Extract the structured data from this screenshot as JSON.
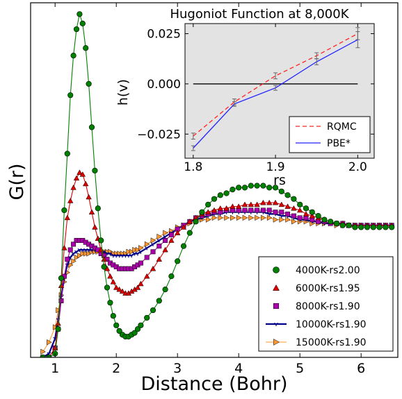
{
  "chart_data": [
    {
      "type": "scatter",
      "xlabel": "Distance (Bohr)",
      "ylabel": "G(r)",
      "xlim": [
        0.6,
        6.6
      ],
      "ylim": [
        0.0,
        1.88
      ],
      "xticks": [
        1,
        2,
        3,
        4,
        5,
        6
      ],
      "x_tick_labels": [
        "1",
        "2",
        "3",
        "4",
        "5",
        "6"
      ],
      "legend_position": "lower-right",
      "series": [
        {
          "name": "4000K-rs2.00",
          "color": "#008000",
          "marker": "circle",
          "x": [
            0.8,
            0.9,
            1.0,
            1.05,
            1.1,
            1.15,
            1.2,
            1.25,
            1.3,
            1.35,
            1.4,
            1.45,
            1.5,
            1.55,
            1.6,
            1.65,
            1.7,
            1.75,
            1.8,
            1.85,
            1.9,
            1.95,
            2.0,
            2.05,
            2.1,
            2.15,
            2.2,
            2.25,
            2.3,
            2.35,
            2.4,
            2.5,
            2.6,
            2.7,
            2.8,
            2.9,
            3.0,
            3.1,
            3.2,
            3.3,
            3.4,
            3.5,
            3.6,
            3.7,
            3.8,
            3.9,
            4.0,
            4.1,
            4.2,
            4.3,
            4.4,
            4.5,
            4.6,
            4.7,
            4.8,
            4.9,
            5.0,
            5.1,
            5.2,
            5.3,
            5.4,
            5.5,
            5.6,
            5.7,
            5.8,
            5.9,
            6.0,
            6.1,
            6.2,
            6.3,
            6.4,
            6.5
          ],
          "y": [
            0.0,
            0.0,
            0.02,
            0.15,
            0.42,
            0.78,
            1.08,
            1.39,
            1.6,
            1.74,
            1.82,
            1.77,
            1.64,
            1.45,
            1.22,
            0.99,
            0.79,
            0.62,
            0.48,
            0.37,
            0.29,
            0.22,
            0.17,
            0.14,
            0.12,
            0.11,
            0.11,
            0.12,
            0.13,
            0.15,
            0.17,
            0.21,
            0.25,
            0.3,
            0.36,
            0.43,
            0.51,
            0.59,
            0.66,
            0.72,
            0.77,
            0.81,
            0.84,
            0.86,
            0.87,
            0.89,
            0.9,
            0.9,
            0.91,
            0.91,
            0.91,
            0.9,
            0.9,
            0.88,
            0.86,
            0.84,
            0.81,
            0.79,
            0.77,
            0.75,
            0.73,
            0.72,
            0.71,
            0.7,
            0.7,
            0.69,
            0.69,
            0.69,
            0.69,
            0.69,
            0.69,
            0.69
          ]
        },
        {
          "name": "6000K-rs1.95",
          "color": "#dd0000",
          "marker": "triangle-up",
          "x": [
            0.8,
            0.9,
            1.0,
            1.05,
            1.1,
            1.15,
            1.2,
            1.25,
            1.3,
            1.35,
            1.4,
            1.45,
            1.5,
            1.55,
            1.6,
            1.65,
            1.7,
            1.75,
            1.8,
            1.85,
            1.9,
            1.95,
            2.0,
            2.05,
            2.1,
            2.15,
            2.2,
            2.25,
            2.3,
            2.35,
            2.4,
            2.5,
            2.6,
            2.7,
            2.8,
            2.9,
            3.0,
            3.1,
            3.2,
            3.3,
            3.4,
            3.5,
            3.6,
            3.7,
            3.8,
            3.9,
            4.0,
            4.1,
            4.2,
            4.3,
            4.4,
            4.5,
            4.6,
            4.7,
            4.8,
            4.9,
            5.0,
            5.1,
            5.2,
            5.3,
            5.4,
            5.5,
            5.6,
            5.7,
            5.8,
            5.9,
            6.0,
            6.1,
            6.2,
            6.3,
            6.4,
            6.5
          ],
          "y": [
            0.0,
            0.0,
            0.05,
            0.18,
            0.38,
            0.58,
            0.74,
            0.83,
            0.9,
            0.95,
            0.98,
            0.97,
            0.92,
            0.85,
            0.77,
            0.69,
            0.63,
            0.57,
            0.52,
            0.47,
            0.43,
            0.4,
            0.37,
            0.36,
            0.35,
            0.34,
            0.34,
            0.35,
            0.36,
            0.37,
            0.39,
            0.43,
            0.47,
            0.52,
            0.57,
            0.62,
            0.66,
            0.69,
            0.72,
            0.74,
            0.76,
            0.77,
            0.78,
            0.79,
            0.79,
            0.8,
            0.8,
            0.81,
            0.81,
            0.81,
            0.82,
            0.82,
            0.82,
            0.81,
            0.8,
            0.79,
            0.78,
            0.76,
            0.75,
            0.74,
            0.73,
            0.72,
            0.71,
            0.71,
            0.7,
            0.7,
            0.7,
            0.7,
            0.7,
            0.7,
            0.7,
            0.7
          ]
        },
        {
          "name": "8000K-rs1.90",
          "color": "#aa00aa",
          "marker": "square",
          "x": [
            0.8,
            0.9,
            1.0,
            1.05,
            1.1,
            1.15,
            1.2,
            1.25,
            1.3,
            1.35,
            1.4,
            1.45,
            1.5,
            1.55,
            1.6,
            1.65,
            1.7,
            1.75,
            1.8,
            1.85,
            1.9,
            1.95,
            2.0,
            2.05,
            2.1,
            2.15,
            2.2,
            2.25,
            2.3,
            2.35,
            2.4,
            2.5,
            2.6,
            2.7,
            2.8,
            2.9,
            3.0,
            3.1,
            3.2,
            3.3,
            3.4,
            3.5,
            3.6,
            3.7,
            3.8,
            3.9,
            4.0,
            4.1,
            4.2,
            4.3,
            4.4,
            4.5,
            4.6,
            4.7,
            4.8,
            4.9,
            5.0,
            5.1,
            5.2,
            5.3,
            5.4,
            5.5,
            5.6,
            5.7,
            5.8,
            5.9,
            6.0,
            6.1,
            6.2,
            6.3,
            6.4,
            6.5
          ],
          "y": [
            0.0,
            0.0,
            0.05,
            0.15,
            0.3,
            0.43,
            0.52,
            0.57,
            0.6,
            0.62,
            0.62,
            0.62,
            0.61,
            0.6,
            0.59,
            0.58,
            0.57,
            0.55,
            0.54,
            0.52,
            0.5,
            0.49,
            0.48,
            0.47,
            0.47,
            0.47,
            0.47,
            0.47,
            0.48,
            0.49,
            0.5,
            0.53,
            0.56,
            0.59,
            0.62,
            0.65,
            0.68,
            0.7,
            0.72,
            0.74,
            0.75,
            0.76,
            0.77,
            0.77,
            0.78,
            0.78,
            0.78,
            0.78,
            0.78,
            0.78,
            0.78,
            0.78,
            0.77,
            0.77,
            0.76,
            0.75,
            0.74,
            0.74,
            0.73,
            0.72,
            0.72,
            0.71,
            0.71,
            0.71,
            0.7,
            0.7,
            0.7,
            0.7,
            0.7,
            0.7,
            0.7,
            0.7
          ]
        },
        {
          "name": "10000K-rs1.90",
          "color": "#000088",
          "marker": "tri-down",
          "x": [
            0.8,
            0.9,
            1.0,
            1.05,
            1.1,
            1.15,
            1.2,
            1.25,
            1.3,
            1.35,
            1.4,
            1.45,
            1.5,
            1.55,
            1.6,
            1.65,
            1.7,
            1.75,
            1.8,
            1.85,
            1.9,
            1.95,
            2.0,
            2.05,
            2.1,
            2.15,
            2.2,
            2.25,
            2.3,
            2.35,
            2.4,
            2.5,
            2.6,
            2.7,
            2.8,
            2.9,
            3.0,
            3.1,
            3.2,
            3.3,
            3.4,
            3.5,
            3.6,
            3.7,
            3.8,
            3.9,
            4.0,
            4.1,
            4.2,
            4.3,
            4.4,
            4.5,
            4.6,
            4.7,
            4.8,
            4.9,
            5.0,
            5.1,
            5.2,
            5.3,
            5.4,
            5.5,
            5.6,
            5.7,
            5.8,
            5.9,
            6.0,
            6.1,
            6.2,
            6.3,
            6.4,
            6.5
          ],
          "y": [
            0.0,
            0.02,
            0.1,
            0.2,
            0.32,
            0.42,
            0.49,
            0.53,
            0.55,
            0.56,
            0.57,
            0.57,
            0.57,
            0.57,
            0.57,
            0.57,
            0.57,
            0.56,
            0.56,
            0.55,
            0.55,
            0.54,
            0.54,
            0.54,
            0.54,
            0.54,
            0.54,
            0.54,
            0.55,
            0.55,
            0.56,
            0.58,
            0.6,
            0.62,
            0.64,
            0.66,
            0.68,
            0.7,
            0.72,
            0.73,
            0.74,
            0.75,
            0.76,
            0.76,
            0.77,
            0.77,
            0.77,
            0.77,
            0.77,
            0.77,
            0.77,
            0.76,
            0.76,
            0.75,
            0.75,
            0.74,
            0.73,
            0.73,
            0.72,
            0.72,
            0.71,
            0.71,
            0.71,
            0.71,
            0.7,
            0.7,
            0.7,
            0.7,
            0.7,
            0.7,
            0.7,
            0.7
          ]
        },
        {
          "name": "15000K-rs1.90",
          "color": "#ff9933",
          "marker": "triangle-right",
          "x": [
            0.8,
            0.9,
            1.0,
            1.05,
            1.1,
            1.15,
            1.2,
            1.25,
            1.3,
            1.35,
            1.4,
            1.45,
            1.5,
            1.55,
            1.6,
            1.65,
            1.7,
            1.75,
            1.8,
            1.85,
            1.9,
            1.95,
            2.0,
            2.05,
            2.1,
            2.15,
            2.2,
            2.25,
            2.3,
            2.35,
            2.4,
            2.5,
            2.6,
            2.7,
            2.8,
            2.9,
            3.0,
            3.1,
            3.2,
            3.3,
            3.4,
            3.5,
            3.6,
            3.7,
            3.8,
            3.9,
            4.0,
            4.1,
            4.2,
            4.3,
            4.4,
            4.5,
            4.6,
            4.7,
            4.8,
            4.9,
            5.0,
            5.1,
            5.2,
            5.3,
            5.4,
            5.5,
            5.6,
            5.7,
            5.8,
            5.9,
            6.0,
            6.1,
            6.2,
            6.3,
            6.4,
            6.5
          ],
          "y": [
            0.03,
            0.08,
            0.16,
            0.25,
            0.33,
            0.4,
            0.45,
            0.49,
            0.51,
            0.53,
            0.54,
            0.55,
            0.55,
            0.55,
            0.56,
            0.56,
            0.56,
            0.56,
            0.56,
            0.56,
            0.56,
            0.55,
            0.55,
            0.55,
            0.55,
            0.55,
            0.56,
            0.56,
            0.57,
            0.57,
            0.58,
            0.6,
            0.62,
            0.64,
            0.66,
            0.67,
            0.69,
            0.7,
            0.71,
            0.72,
            0.73,
            0.73,
            0.74,
            0.74,
            0.74,
            0.74,
            0.74,
            0.74,
            0.74,
            0.74,
            0.74,
            0.74,
            0.73,
            0.73,
            0.73,
            0.72,
            0.72,
            0.72,
            0.71,
            0.71,
            0.71,
            0.71,
            0.7,
            0.7,
            0.7,
            0.7,
            0.7,
            0.7,
            0.7,
            0.7,
            0.7,
            0.7
          ]
        }
      ]
    },
    {
      "type": "line",
      "title": "Hugoniot Function at 8,000K",
      "xlabel": "rs",
      "ylabel": "h(v)",
      "xlim": [
        1.79,
        2.02
      ],
      "ylim": [
        -0.037,
        0.03
      ],
      "xticks": [
        1.8,
        1.9,
        2.0
      ],
      "x_tick_labels": [
        "1.8",
        "1.9",
        "2.0"
      ],
      "yticks": [
        0.025,
        0.0,
        -0.025
      ],
      "y_tick_labels": [
        "0.025",
        "0.000",
        "−0.025"
      ],
      "background": "#e3e3e3",
      "legend_position": "lower-right",
      "zero_line_color": "#333333",
      "series": [
        {
          "name": "RQMC",
          "color": "#ff2222",
          "style": "dashed",
          "x": [
            1.8,
            1.85,
            1.9,
            1.95,
            2.0
          ],
          "y": [
            -0.026,
            -0.009,
            0.004,
            0.014,
            0.025
          ],
          "err": [
            0.0015,
            0.0015,
            0.0015,
            0.0015,
            0.003
          ]
        },
        {
          "name": "PBE*",
          "color": "#2222ff",
          "style": "solid",
          "x": [
            1.8,
            1.85,
            1.9,
            1.95,
            2.0
          ],
          "y": [
            -0.032,
            -0.01,
            -0.002,
            0.011,
            0.022
          ],
          "err": [
            0.0012,
            0.0012,
            0.0012,
            0.0015,
            0.004
          ]
        }
      ]
    }
  ]
}
